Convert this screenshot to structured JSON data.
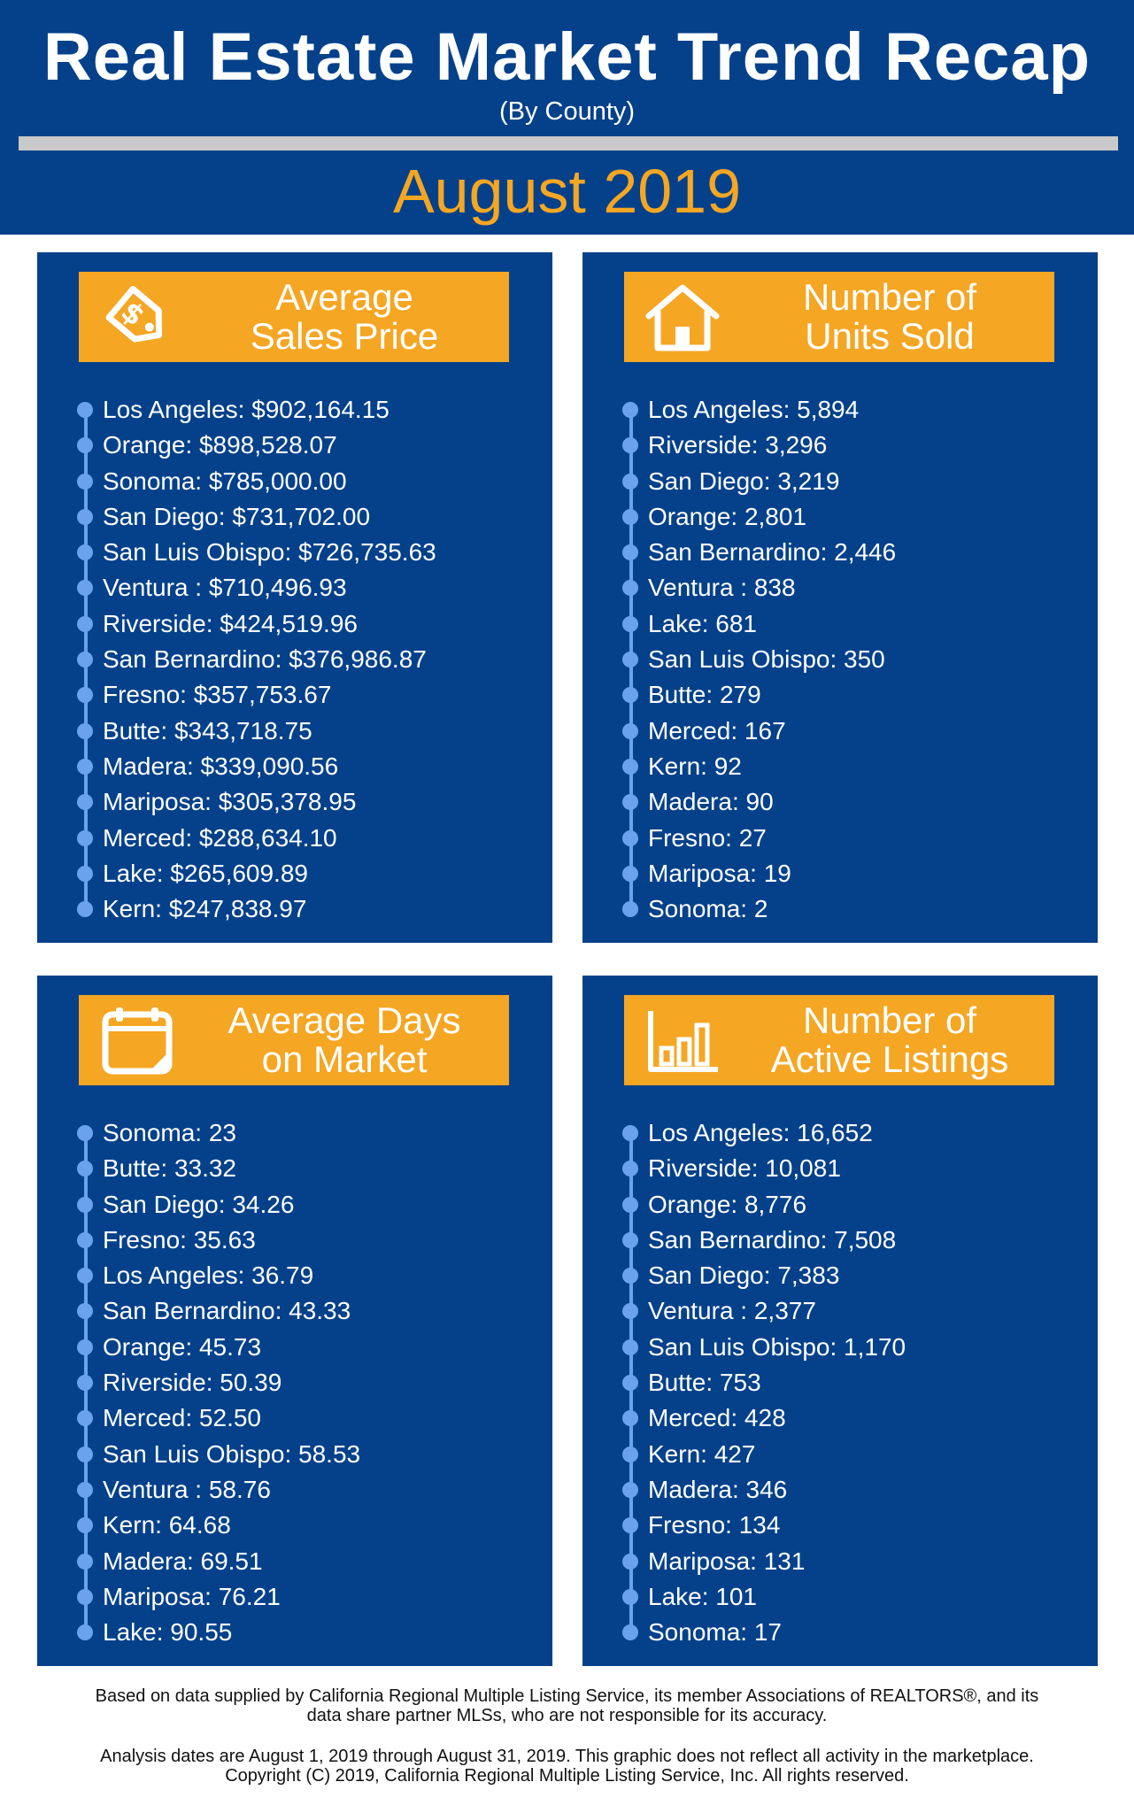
{
  "header": {
    "title": "Real Estate Market Trend Recap",
    "subtitle": "(By County)",
    "month": "August 2019"
  },
  "colors": {
    "navy": "#04418a",
    "orange": "#f5a623",
    "rule_gray": "#c9c9c9",
    "bullet_blue": "#6aa2ee"
  },
  "panels": [
    {
      "icon": "price-tag-icon",
      "heading_line1": "Average",
      "heading_line2": "Sales Price",
      "items": [
        "Los Angeles: $902,164.15",
        "Orange: $898,528.07",
        "Sonoma: $785,000.00",
        "San Diego: $731,702.00",
        "San Luis Obispo: $726,735.63",
        "Ventura : $710,496.93",
        "Riverside: $424,519.96",
        "San Bernardino: $376,986.87",
        "Fresno: $357,753.67",
        "Butte: $343,718.75",
        "Madera: $339,090.56",
        "Mariposa: $305,378.95",
        "Merced: $288,634.10",
        "Lake: $265,609.89",
        "Kern: $247,838.97"
      ]
    },
    {
      "icon": "house-icon",
      "heading_line1": "Number of",
      "heading_line2": "Units Sold",
      "items": [
        "Los Angeles: 5,894",
        "Riverside: 3,296",
        "San Diego: 3,219",
        "Orange: 2,801",
        "San Bernardino: 2,446",
        "Ventura : 838",
        "Lake: 681",
        "San Luis Obispo: 350",
        "Butte: 279",
        "Merced: 167",
        "Kern: 92",
        "Madera: 90",
        "Fresno: 27",
        "Mariposa: 19",
        "Sonoma: 2"
      ]
    },
    {
      "icon": "calendar-icon",
      "heading_line1": "Average Days",
      "heading_line2": "on Market",
      "items": [
        "Sonoma: 23",
        "Butte: 33.32",
        "San Diego: 34.26",
        "Fresno: 35.63",
        "Los Angeles: 36.79",
        "San Bernardino: 43.33",
        "Orange: 45.73",
        "Riverside: 50.39",
        "Merced: 52.50",
        "San Luis Obispo: 58.53",
        "Ventura : 58.76",
        "Kern: 64.68",
        "Madera: 69.51",
        "Mariposa: 76.21",
        "Lake: 90.55"
      ]
    },
    {
      "icon": "bar-chart-icon",
      "heading_line1": "Number of",
      "heading_line2": "Active Listings",
      "items": [
        "Los Angeles: 16,652",
        "Riverside: 10,081",
        "Orange: 8,776",
        "San Bernardino: 7,508",
        "San Diego: 7,383",
        "Ventura : 2,377",
        "San Luis Obispo: 1,170",
        "Butte: 753",
        "Merced: 428",
        "Kern: 427",
        "Madera: 346",
        "Fresno: 134",
        "Mariposa: 131",
        "Lake: 101",
        "Sonoma: 17"
      ]
    }
  ],
  "footer": {
    "line1": "Based on data supplied by California Regional Multiple Listing Service, its member Associations of REALTORS®, and its",
    "line2": "data share partner MLSs, who are not responsible for its accuracy.",
    "line3": "Analysis dates are August 1, 2019 through August 31, 2019. This graphic does not reflect all activity in the marketplace.",
    "line4": "Copyright (C) 2019, California Regional Multiple Listing Service, Inc. All rights reserved."
  }
}
